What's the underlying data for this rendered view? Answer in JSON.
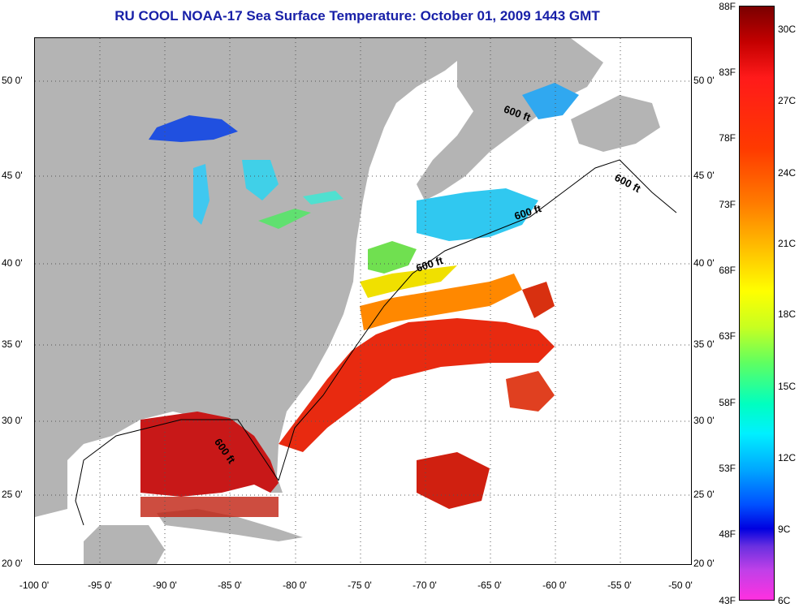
{
  "title": "RU COOL  NOAA-17  Sea Surface Temperature:  October 01, 2009 1443 GMT",
  "lat_labels": [
    "50 0'",
    "45 0'",
    "40 0'",
    "35 0'",
    "30 0'",
    "25 0'",
    "20 0'"
  ],
  "lon_labels": [
    "-100 0'",
    "-95 0'",
    "-90 0'",
    "-85 0'",
    "-80 0'",
    "-75 0'",
    "-70 0'",
    "-65 0'",
    "-60 0'",
    "-55 0'",
    "-50 0'"
  ],
  "contour_labels": [
    "600 ft",
    "600 ft",
    "600 ft",
    "600 ft",
    "600 ft"
  ],
  "colorbar": {
    "fahrenheit": [
      "88F",
      "83F",
      "78F",
      "73F",
      "68F",
      "63F",
      "58F",
      "53F",
      "48F",
      "43F"
    ],
    "celsius": [
      "30C",
      "27C",
      "24C",
      "21C",
      "18C",
      "15C",
      "12C",
      "9C",
      "6C"
    ]
  },
  "colors": {
    "land": "#b4b4b4",
    "title": "#1820a8",
    "warm": "#d81010",
    "cold": "#1040e0"
  }
}
